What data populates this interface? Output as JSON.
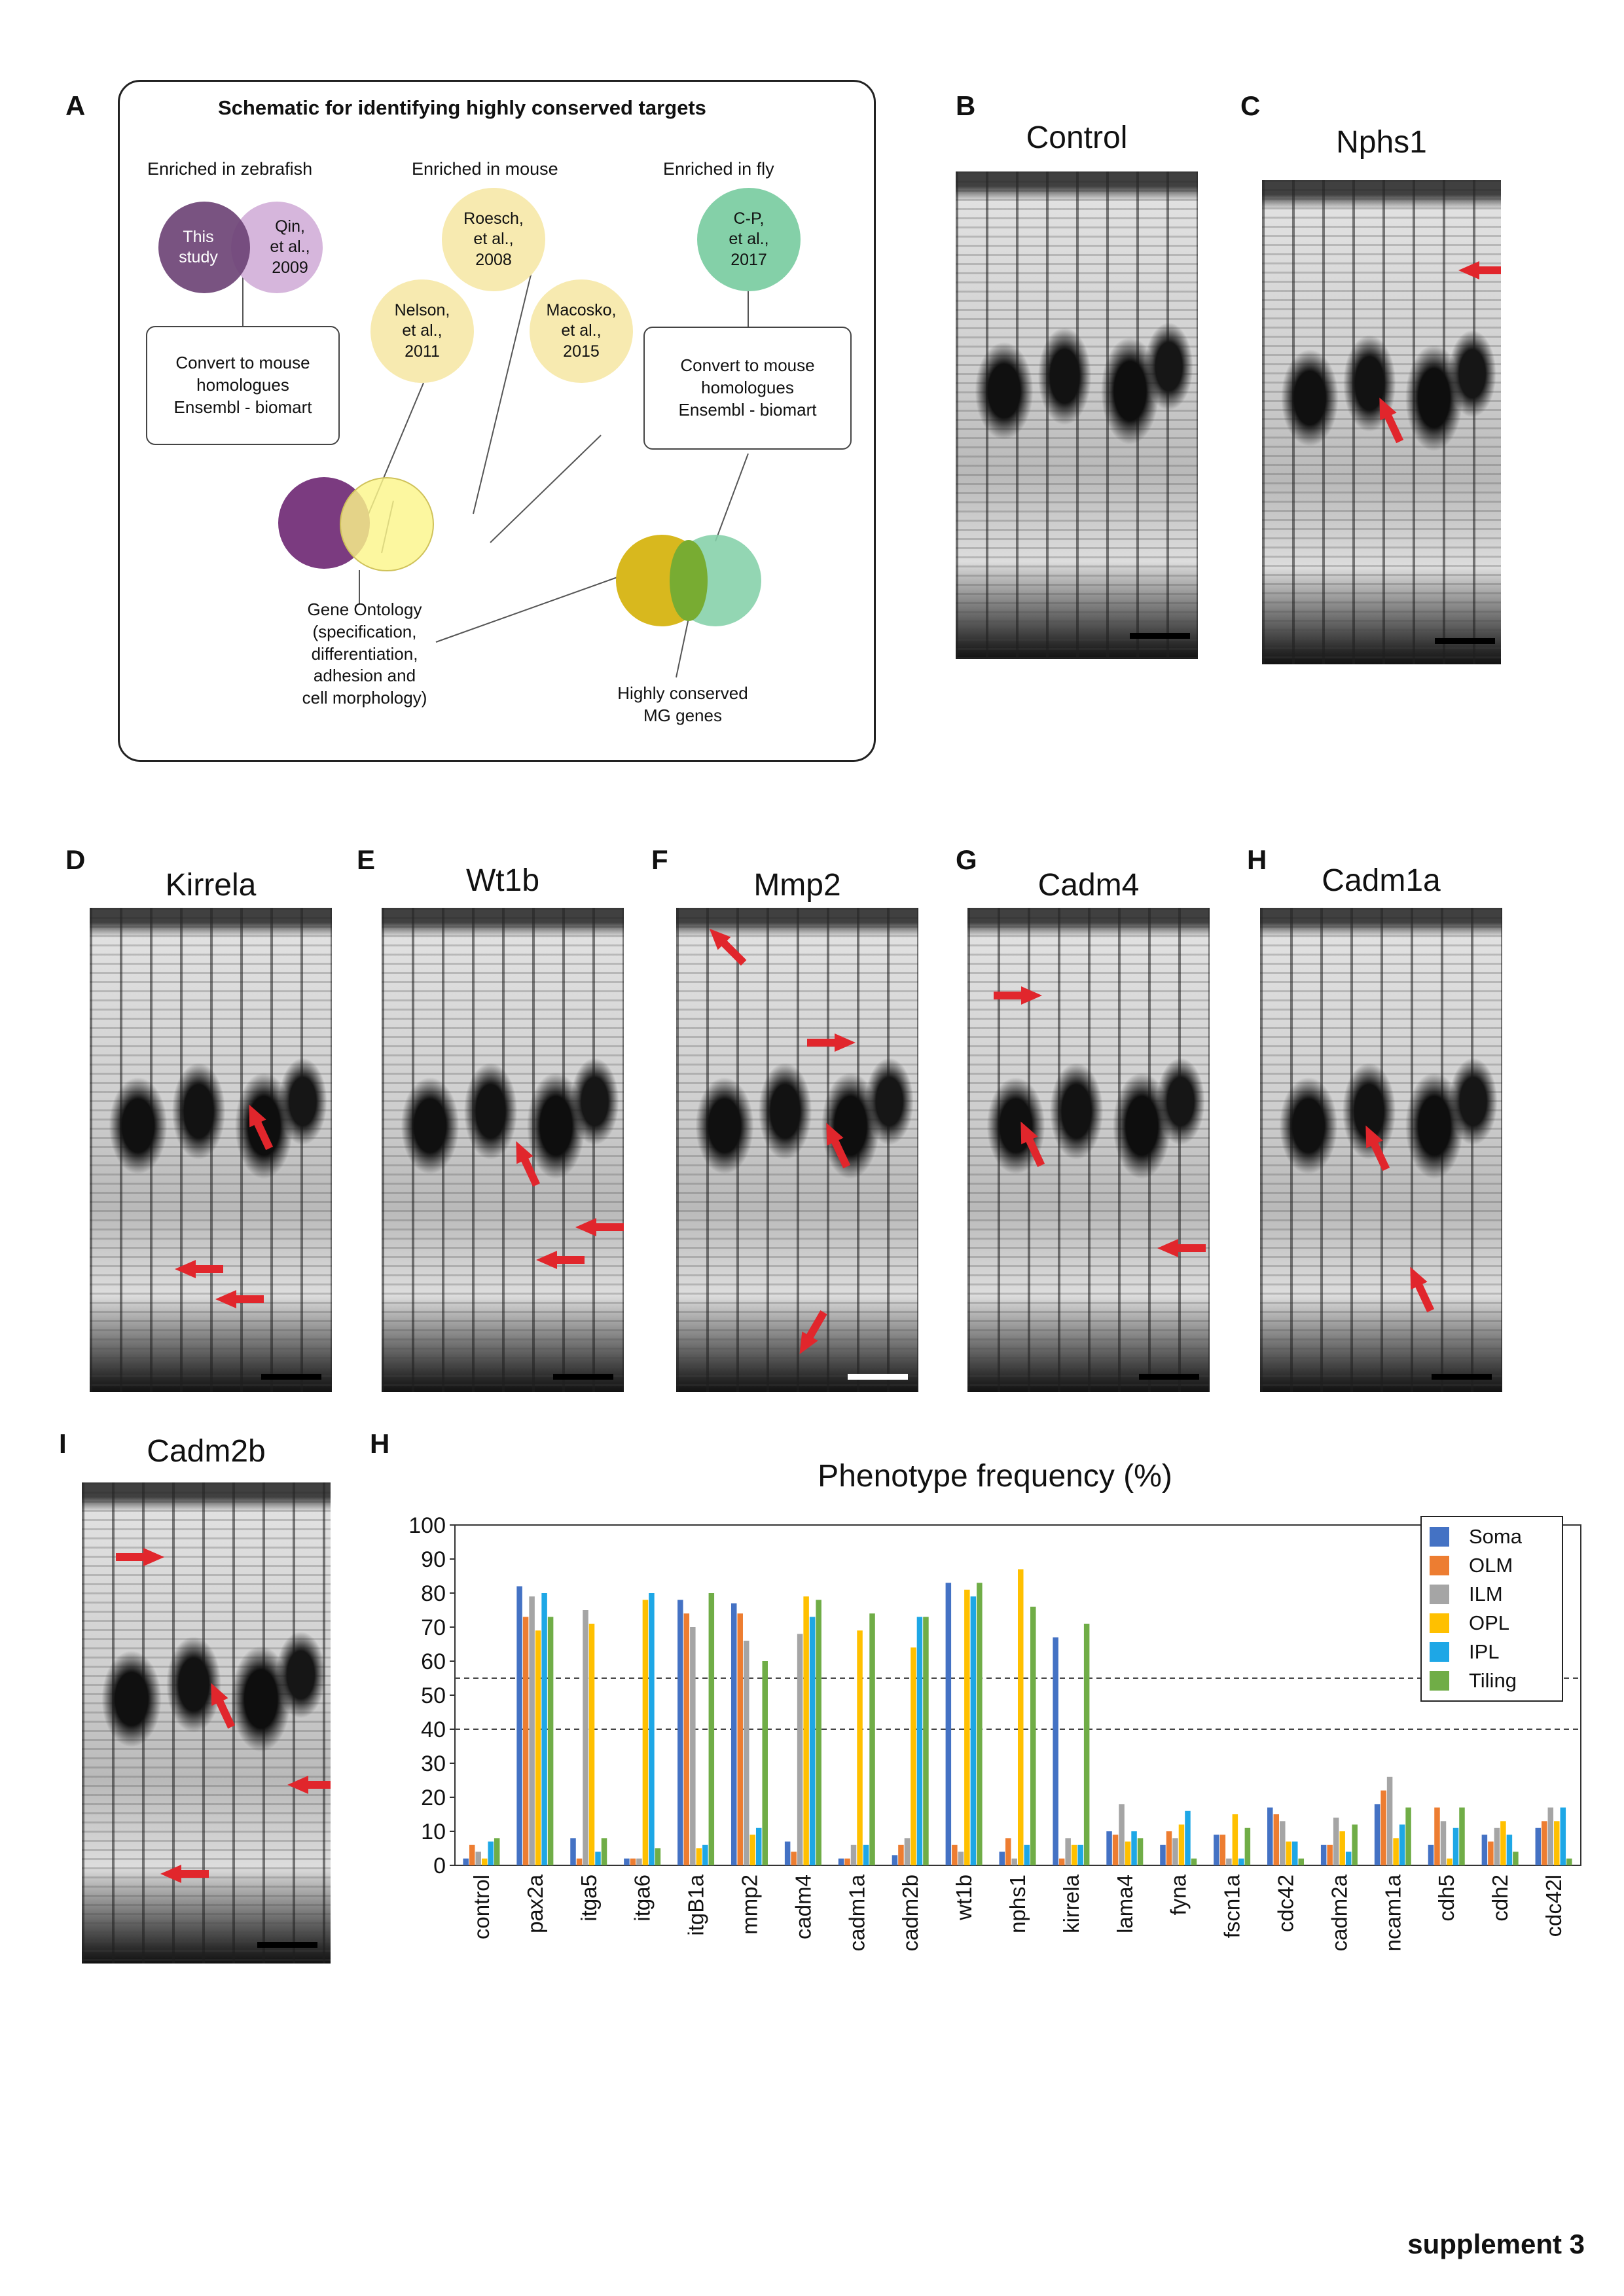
{
  "panel_a": {
    "label": "A",
    "title": "Schematic for identifying highly conserved targets",
    "zebrafish": {
      "heading": "Enriched in zebrafish",
      "this_study": "This\nstudy",
      "qin": "Qin,\net al.,\n2009",
      "convert_box": "Convert to mouse\nhomologues\nEnsembl - biomart"
    },
    "mouse": {
      "heading": "Enriched in mouse",
      "roesch": "Roesch,\net al.,\n2008",
      "nelson": "Nelson,\net al.,\n2011",
      "macosko": "Macosko,\net al.,\n2015"
    },
    "fly": {
      "heading": "Enriched in fly",
      "cp": "C-P,\net al.,\n2017",
      "convert_box": "Convert to mouse\nhomologues\nEnsembl - biomart"
    },
    "gene_ontology": "Gene Ontology\n(specification,\ndifferentiation,\nadhesion and\ncell morphology)",
    "highly_conserved": "Highly conserved\nMG genes",
    "colors": {
      "purple_dark": "#6e4476",
      "purple_light": "#d6b6dc",
      "purple_deep": "#7b3b80",
      "yellow_light": "#f7eab0",
      "yellow_bright": "#fbf58a",
      "yellow_dark": "#d8b81e",
      "green_light": "#84d0a8",
      "green_overlap": "#78ac32"
    }
  },
  "micrographs": [
    {
      "label": "B",
      "title": "Control"
    },
    {
      "label": "C",
      "title": "Nphs1"
    },
    {
      "label": "D",
      "title": "Kirrela"
    },
    {
      "label": "E",
      "title": "Wt1b"
    },
    {
      "label": "F",
      "title": "Mmp2"
    },
    {
      "label": "G",
      "title": "Cadm4"
    },
    {
      "label": "H",
      "title": "Cadm1a"
    },
    {
      "label": "I",
      "title": "Cadm2b"
    }
  ],
  "chart_label": "H",
  "chart_data": {
    "type": "bar",
    "title": "Phenotype frequency (%)",
    "ylim": [
      0,
      100
    ],
    "yticks": [
      0,
      10,
      20,
      30,
      40,
      50,
      60,
      70,
      80,
      90,
      100
    ],
    "reference_lines": [
      55,
      40
    ],
    "legend_position": "top-right",
    "categories": [
      "control",
      "pax2a",
      "itga5",
      "itga6",
      "itgB1a",
      "mmp2",
      "cadm4",
      "cadm1a",
      "cadm2b",
      "wt1b",
      "nphs1",
      "kirrela",
      "lama4",
      "fyna",
      "fscn1a",
      "cdc42",
      "cadm2a",
      "ncam1a",
      "cdh5",
      "cdh2",
      "cdc42l"
    ],
    "series": [
      {
        "name": "Soma",
        "color": "#4472c4",
        "values": [
          2,
          82,
          8,
          2,
          78,
          77,
          7,
          2,
          3,
          83,
          4,
          67,
          10,
          6,
          9,
          17,
          6,
          18,
          6,
          9,
          11
        ]
      },
      {
        "name": "OLM",
        "color": "#ed7d31",
        "values": [
          6,
          73,
          2,
          2,
          74,
          74,
          4,
          2,
          6,
          6,
          8,
          2,
          9,
          10,
          9,
          15,
          6,
          22,
          17,
          7,
          13
        ]
      },
      {
        "name": "ILM",
        "color": "#a5a5a5",
        "values": [
          4,
          79,
          75,
          2,
          70,
          66,
          68,
          6,
          8,
          4,
          2,
          8,
          18,
          8,
          2,
          13,
          14,
          26,
          13,
          11,
          17
        ]
      },
      {
        "name": "OPL",
        "color": "#ffc000",
        "values": [
          2,
          69,
          71,
          78,
          5,
          9,
          79,
          69,
          64,
          81,
          87,
          6,
          7,
          12,
          15,
          7,
          10,
          8,
          2,
          13,
          13
        ]
      },
      {
        "name": "IPL",
        "color": "#1ea7e6",
        "values": [
          7,
          80,
          4,
          80,
          6,
          11,
          73,
          6,
          73,
          79,
          6,
          6,
          10,
          16,
          2,
          7,
          4,
          12,
          11,
          9,
          17
        ]
      },
      {
        "name": "Tiling",
        "color": "#70ad47",
        "values": [
          8,
          73,
          8,
          5,
          80,
          60,
          78,
          74,
          73,
          83,
          76,
          71,
          8,
          2,
          11,
          2,
          12,
          17,
          17,
          4,
          2
        ]
      }
    ]
  },
  "footer": "supplement 3"
}
